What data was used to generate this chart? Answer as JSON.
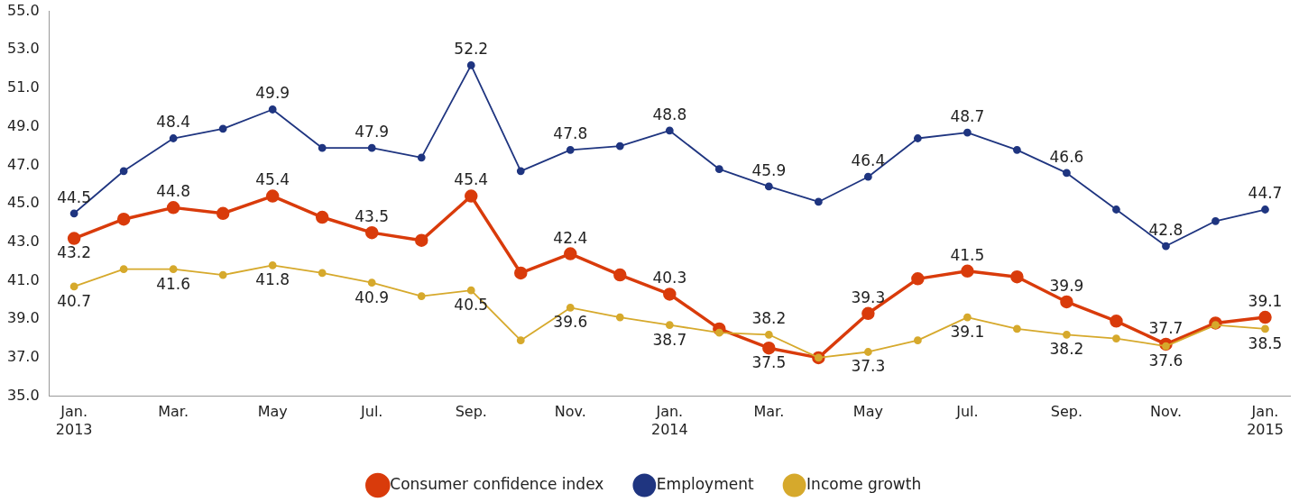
{
  "chart_data": {
    "type": "line",
    "categories": [
      "Jan.\n2013",
      null,
      "Mar.",
      null,
      "May",
      null,
      "Jul.",
      null,
      "Sep.",
      null,
      "Nov.",
      null,
      "Jan.\n2014",
      null,
      "Mar.",
      null,
      "May",
      null,
      "Jul.",
      null,
      "Sep.",
      null,
      "Nov.",
      null,
      "Jan.\n2015"
    ],
    "series": [
      {
        "name": "Consumer confidence index",
        "color": "#d93b0b",
        "values": [
          43.2,
          44.2,
          44.8,
          44.5,
          45.4,
          44.3,
          43.5,
          43.1,
          45.4,
          41.4,
          42.4,
          41.3,
          40.3,
          38.5,
          37.5,
          37.0,
          39.3,
          41.1,
          41.5,
          41.2,
          39.9,
          38.9,
          37.7,
          38.8,
          39.1
        ],
        "value_labels": [
          "43.2",
          null,
          "44.8",
          null,
          "45.4",
          null,
          "43.5",
          null,
          "45.4",
          null,
          "42.4",
          null,
          "40.3",
          null,
          "37.5",
          null,
          "39.3",
          null,
          "41.5",
          null,
          "39.9",
          null,
          "37.7",
          null,
          "39.1"
        ]
      },
      {
        "name": "Employment",
        "color": "#1f3580",
        "values": [
          44.5,
          46.7,
          48.4,
          48.9,
          49.9,
          47.9,
          47.9,
          47.4,
          52.2,
          46.7,
          47.8,
          48.0,
          48.8,
          46.8,
          45.9,
          45.1,
          46.4,
          48.4,
          48.7,
          47.8,
          46.6,
          44.7,
          42.8,
          44.1,
          44.7
        ],
        "value_labels": [
          "44.5",
          null,
          "48.4",
          null,
          "49.9",
          null,
          "47.9",
          null,
          "52.2",
          null,
          "47.8",
          null,
          "48.8",
          null,
          "45.9",
          null,
          "46.4",
          null,
          "48.7",
          null,
          "46.6",
          null,
          "42.8",
          null,
          "44.7"
        ]
      },
      {
        "name": "Income growth",
        "color": "#d6a92c",
        "values": [
          40.7,
          41.6,
          41.6,
          41.3,
          41.8,
          41.4,
          40.9,
          40.2,
          40.5,
          37.9,
          39.6,
          39.1,
          38.7,
          38.3,
          38.2,
          37.0,
          37.3,
          37.9,
          39.1,
          38.5,
          38.2,
          38.0,
          37.6,
          38.7,
          38.5
        ],
        "value_labels": [
          "40.7",
          null,
          "41.6",
          null,
          "41.8",
          null,
          "40.9",
          null,
          "40.5",
          null,
          "39.6",
          null,
          "38.7",
          null,
          "38.2",
          null,
          "37.3",
          null,
          "39.1",
          null,
          "38.2",
          null,
          "37.6",
          null,
          "38.5"
        ]
      }
    ],
    "ylim": [
      35,
      55
    ],
    "yticks": [
      {
        "value": 35,
        "label": "35.0"
      },
      {
        "value": 37,
        "label": "37.0"
      },
      {
        "value": 39,
        "label": "39.0"
      },
      {
        "value": 41,
        "label": "41.0"
      },
      {
        "value": 43,
        "label": "43.0"
      },
      {
        "value": 45,
        "label": "45.0"
      },
      {
        "value": 47,
        "label": "47.0"
      },
      {
        "value": 49,
        "label": "49.0"
      },
      {
        "value": 51,
        "label": "51.0"
      },
      {
        "value": 53,
        "label": "53.0"
      },
      {
        "value": 55,
        "label": "55.0"
      }
    ],
    "grid": false,
    "legend": "bottom",
    "marker": "circle",
    "line_style": "solid"
  }
}
